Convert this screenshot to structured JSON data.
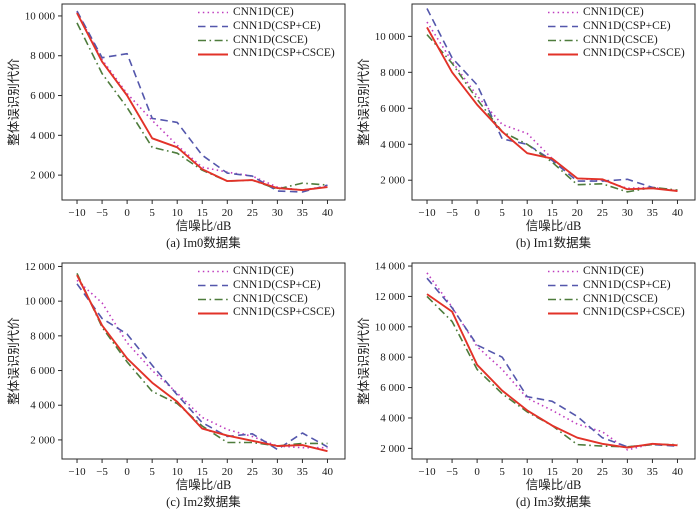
{
  "figure": {
    "ylabel": "整体误识别代价",
    "xlabel": "信噪比/dB",
    "background": "#ffffff",
    "frame_color": "#2b2b2b",
    "legend": [
      {
        "label": "CNN1D(CE)",
        "color": "#bf3cbf",
        "dash": "dotted"
      },
      {
        "label": "CNN1D(CSP+CE)",
        "color": "#5457ac",
        "dash": "dashed"
      },
      {
        "label": "CNN1D(CSCE)",
        "color": "#4e7c3c",
        "dash": "dashdot"
      },
      {
        "label": "CNN1D(CSP+CSCE)",
        "color": "#e23228",
        "dash": "solid"
      }
    ]
  },
  "chart_data": [
    {
      "type": "line",
      "caption": "(a) Im0数据集",
      "xlabel": "信噪比/dB",
      "ylabel": "整体误识别代价",
      "grid": false,
      "legend_position": "top-right",
      "x": [
        -10,
        -5,
        0,
        5,
        10,
        15,
        20,
        25,
        30,
        35,
        40
      ],
      "xtick_labels": [
        "−10",
        "−5",
        "0",
        "5",
        "10",
        "15",
        "20",
        "25",
        "30",
        "35",
        "40"
      ],
      "xlim": [
        -13,
        43.5
      ],
      "ylim": [
        750,
        10600
      ],
      "yticks": [
        2000,
        4000,
        6000,
        8000,
        10000
      ],
      "ytick_labels": [
        "2 000",
        "4 000",
        "6 000",
        "8 000",
        "10 000"
      ],
      "series": [
        {
          "name": "CNN1D(CE)",
          "values": [
            10200,
            7800,
            6100,
            4750,
            3500,
            2400,
            2150,
            1950,
            1400,
            1250,
            1450
          ]
        },
        {
          "name": "CNN1D(CSP+CE)",
          "values": [
            10250,
            7900,
            8100,
            4850,
            4650,
            3000,
            2100,
            1950,
            1200,
            1150,
            1500
          ]
        },
        {
          "name": "CNN1D(CSCE)",
          "values": [
            9650,
            7100,
            5400,
            3400,
            3100,
            2250,
            1700,
            1750,
            1300,
            1600,
            1500
          ]
        },
        {
          "name": "CNN1D(CSP+CSCE)",
          "values": [
            10150,
            7700,
            6000,
            3850,
            3400,
            2300,
            1700,
            1750,
            1350,
            1250,
            1400
          ]
        }
      ]
    },
    {
      "type": "line",
      "caption": "(b) Im1数据集",
      "xlabel": "信噪比/dB",
      "ylabel": "整体误识别代价",
      "grid": false,
      "legend_position": "top-right",
      "x": [
        -10,
        -5,
        0,
        5,
        10,
        15,
        20,
        25,
        30,
        35,
        40
      ],
      "xtick_labels": [
        "−10",
        "−5",
        "0",
        "5",
        "10",
        "15",
        "20",
        "25",
        "30",
        "35",
        "40"
      ],
      "xlim": [
        -13,
        43.5
      ],
      "ylim": [
        900,
        11800
      ],
      "yticks": [
        2000,
        4000,
        6000,
        8000,
        10000
      ],
      "ytick_labels": [
        "2 000",
        "4 000",
        "6 000",
        "8 000",
        "10 000"
      ],
      "series": [
        {
          "name": "CNN1D(CE)",
          "values": [
            10800,
            8600,
            6700,
            5100,
            4600,
            3200,
            2100,
            2000,
            1550,
            1600,
            1400
          ]
        },
        {
          "name": "CNN1D(CSP+CE)",
          "values": [
            11550,
            8800,
            7300,
            4300,
            4000,
            3100,
            1950,
            1950,
            2050,
            1600,
            1400
          ]
        },
        {
          "name": "CNN1D(CSCE)",
          "values": [
            10100,
            8500,
            6500,
            4700,
            4000,
            3000,
            1750,
            1800,
            1350,
            1600,
            1450
          ]
        },
        {
          "name": "CNN1D(CSP+CSCE)",
          "values": [
            10500,
            8000,
            6200,
            4700,
            3500,
            3200,
            2100,
            2050,
            1500,
            1550,
            1400
          ]
        }
      ]
    },
    {
      "type": "line",
      "caption": "(c) Im2数据集",
      "xlabel": "信噪比/dB",
      "ylabel": "整体误识别代价",
      "grid": false,
      "legend_position": "top-right",
      "x": [
        -10,
        -5,
        0,
        5,
        10,
        15,
        20,
        25,
        30,
        35,
        40
      ],
      "xtick_labels": [
        "−10",
        "−5",
        "0",
        "5",
        "10",
        "15",
        "20",
        "25",
        "30",
        "35",
        "40"
      ],
      "xlim": [
        -13,
        43.5
      ],
      "ylim": [
        900,
        12200
      ],
      "yticks": [
        2000,
        4000,
        6000,
        8000,
        10000,
        12000
      ],
      "ytick_labels": [
        "2 000",
        "4 000",
        "6 000",
        "8 000",
        "10 000",
        "12 000"
      ],
      "series": [
        {
          "name": "CNN1D(CE)",
          "values": [
            11200,
            9900,
            7600,
            6000,
            4700,
            3300,
            2600,
            2200,
            1650,
            1550,
            1550
          ]
        },
        {
          "name": "CNN1D(CSP+CE)",
          "values": [
            11000,
            9000,
            8100,
            6300,
            4600,
            3000,
            2200,
            2350,
            1450,
            2400,
            1600
          ]
        },
        {
          "name": "CNN1D(CSCE)",
          "values": [
            11600,
            8500,
            6500,
            4800,
            4100,
            2800,
            1850,
            1850,
            1650,
            1800,
            1800
          ]
        },
        {
          "name": "CNN1D(CSP+CSCE)",
          "values": [
            11500,
            8600,
            6700,
            5300,
            4200,
            2650,
            2250,
            1950,
            1650,
            1700,
            1350
          ]
        }
      ]
    },
    {
      "type": "line",
      "caption": "(d) Im3数据集",
      "xlabel": "信噪比/dB",
      "ylabel": "整体误识别代价",
      "grid": false,
      "legend_position": "top-right",
      "x": [
        -10,
        -5,
        0,
        5,
        10,
        15,
        20,
        25,
        30,
        35,
        40
      ],
      "xtick_labels": [
        "−10",
        "−5",
        "0",
        "5",
        "10",
        "15",
        "20",
        "25",
        "30",
        "35",
        "40"
      ],
      "xlim": [
        -13,
        43.5
      ],
      "ylim": [
        1300,
        14200
      ],
      "yticks": [
        2000,
        4000,
        6000,
        8000,
        10000,
        12000,
        14000
      ],
      "ytick_labels": [
        "2 000",
        "4 000",
        "6 000",
        "8 000",
        "10 000",
        "12 000",
        "14 000"
      ],
      "series": [
        {
          "name": "CNN1D(CE)",
          "values": [
            13550,
            11300,
            8700,
            7200,
            5300,
            4500,
            3600,
            3100,
            1900,
            2300,
            2200
          ]
        },
        {
          "name": "CNN1D(CSP+CE)",
          "values": [
            13200,
            11250,
            8800,
            8000,
            5400,
            5100,
            4100,
            2700,
            2100,
            2250,
            2150
          ]
        },
        {
          "name": "CNN1D(CSCE)",
          "values": [
            12000,
            10350,
            7200,
            5600,
            4400,
            3500,
            2250,
            2150,
            2100,
            2250,
            2250
          ]
        },
        {
          "name": "CNN1D(CSP+CSCE)",
          "values": [
            12150,
            11000,
            7500,
            5800,
            4500,
            3500,
            2700,
            2300,
            2050,
            2300,
            2200
          ]
        }
      ]
    }
  ]
}
